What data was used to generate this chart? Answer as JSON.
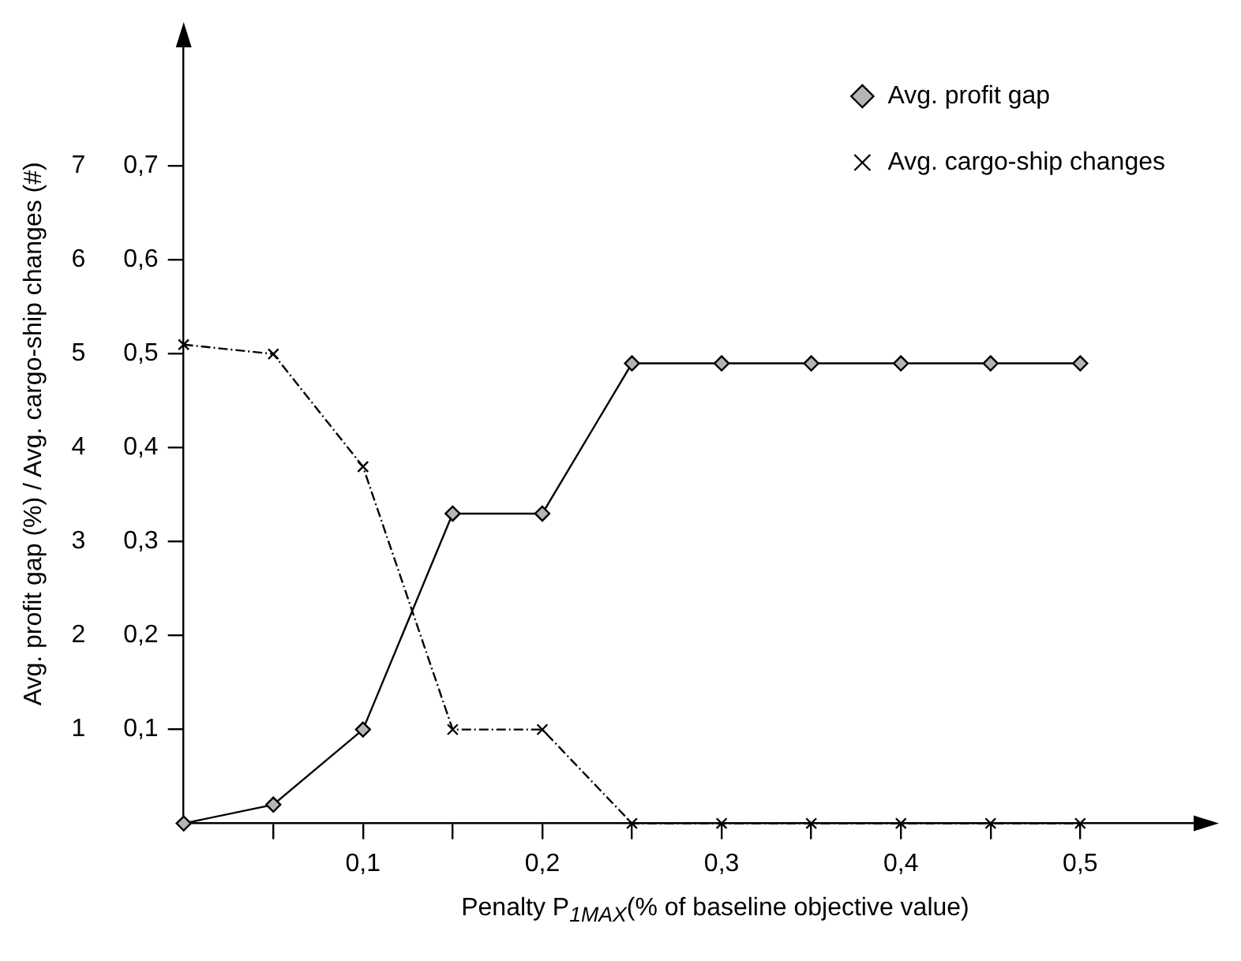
{
  "chart_data": {
    "type": "line",
    "xlabel": "Penalty P$_{1MAX}$(% of baseline objective value)",
    "ylabel": "Avg. profit gap (%) / Avg. cargo-ship changes (#)",
    "x": [
      0,
      0.05,
      0.1,
      0.15,
      0.2,
      0.25,
      0.3,
      0.35,
      0.4,
      0.45,
      0.5
    ],
    "series": [
      {
        "name": "Avg. profit gap",
        "color": "#000000",
        "axis": "y2",
        "marker": "diamond",
        "line_style": "solid",
        "values": [
          0,
          0.02,
          0.1,
          0.33,
          0.33,
          0.49,
          0.49,
          0.49,
          0.49,
          0.49,
          0.49
        ]
      },
      {
        "name": "Avg. cargo-ship changes",
        "color": "#000000",
        "marker": "cross",
        "line_style": "dashed",
        "values": [
          5.1,
          5.0,
          3.8,
          1.0,
          1.0,
          0,
          0,
          0,
          0,
          0,
          0
        ]
      }
    ],
    "xlim": [
      0,
      0.565
    ],
    "xticks": [
      {
        "value": 0.05,
        "label": null
      },
      {
        "value": 0.1,
        "label": "0,1"
      },
      {
        "value": 0.15,
        "label": null
      },
      {
        "value": 0.2,
        "label": "0,2"
      },
      {
        "value": 0.25,
        "label": null
      },
      {
        "value": 0.3,
        "label": "0,3"
      },
      {
        "value": 0.35,
        "label": null
      },
      {
        "value": 0.4,
        "label": "0,4"
      },
      {
        "value": 0.45,
        "label": null
      },
      {
        "value": 0.5,
        "label": "0,5"
      }
    ],
    "ylim": [
      0,
      8.3
    ],
    "yticks": [
      1,
      2,
      3,
      4,
      5,
      6,
      7
    ],
    "y2lim": [
      0,
      0.83
    ],
    "y2ticks": [
      {
        "value": 0.1,
        "label": "0,1"
      },
      {
        "value": 0.2,
        "label": "0,2"
      },
      {
        "value": 0.3,
        "label": "0,3"
      },
      {
        "value": 0.4,
        "label": "0,4"
      },
      {
        "value": 0.5,
        "label": "0,5"
      },
      {
        "value": 0.6,
        "label": "0,6"
      },
      {
        "value": 0.7,
        "label": "0,7"
      }
    ],
    "grid": false,
    "legend": "top right"
  }
}
